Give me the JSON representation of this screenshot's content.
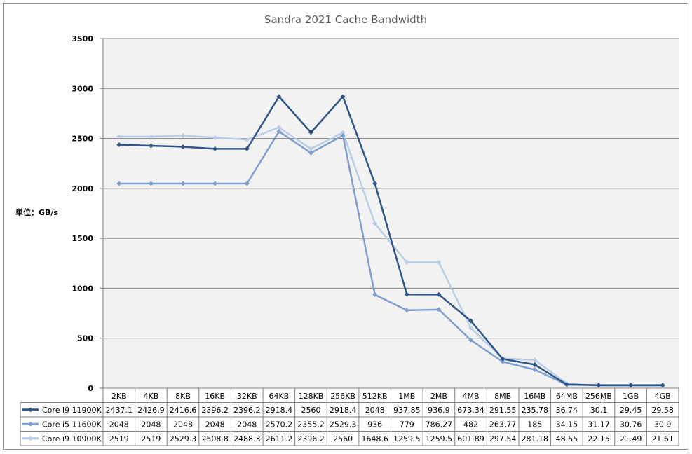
{
  "chart_data": {
    "type": "line",
    "title": "Sandra 2021 Cache Bandwidth",
    "ylabel": "単位：GB/s",
    "ylim": [
      0,
      3500
    ],
    "yticks": [
      0,
      500,
      1000,
      1500,
      2000,
      2500,
      3000,
      3500
    ],
    "grid": true,
    "legend": "data-table-left",
    "categories": [
      "2KB",
      "4KB",
      "8KB",
      "16KB",
      "32KB",
      "64KB",
      "128KB",
      "256KB",
      "512KB",
      "1MB",
      "2MB",
      "4MB",
      "8MB",
      "16MB",
      "64MB",
      "256MB",
      "1GB",
      "4GB"
    ],
    "series": [
      {
        "name": "Core i9 11900K",
        "color": "#2e5687",
        "values": [
          2437.1,
          2426.9,
          2416.6,
          2396.2,
          2396.2,
          2918.4,
          2560,
          2918.4,
          2048,
          937.85,
          936.9,
          673.34,
          291.55,
          235.78,
          36.74,
          30.1,
          29.45,
          29.58
        ]
      },
      {
        "name": "Core i5 11600K",
        "color": "#7f9fcf",
        "values": [
          2048,
          2048,
          2048,
          2048,
          2048,
          2570.2,
          2355.2,
          2529.3,
          936,
          779,
          786.27,
          482,
          263.77,
          185,
          34.15,
          31.17,
          30.76,
          30.9
        ]
      },
      {
        "name": "Core i9 10900K",
        "color": "#b9cde8",
        "values": [
          2519,
          2519,
          2529.3,
          2508.8,
          2488.3,
          2611.2,
          2396.2,
          2560,
          1648.6,
          1259.5,
          1259.5,
          601.89,
          297.54,
          281.18,
          48.55,
          22.15,
          21.49,
          21.61
        ]
      }
    ],
    "table_text": [
      [
        "2437.1",
        "2426.9",
        "2416.6",
        "2396.2",
        "2396.2",
        "2918.4",
        "2560",
        "2918.4",
        "2048",
        "937.85",
        "936.9",
        "673.34",
        "291.55",
        "235.78",
        "36.74",
        "30.1",
        "29.45",
        "29.58"
      ],
      [
        "2048",
        "2048",
        "2048",
        "2048",
        "2048",
        "2570.2",
        "2355.2",
        "2529.3",
        "936",
        "779",
        "786.27",
        "482",
        "263.77",
        "185",
        "34.15",
        "31.17",
        "30.76",
        "30.9"
      ],
      [
        "2519",
        "2519",
        "2529.3",
        "2508.8",
        "2488.3",
        "2611.2",
        "2396.2",
        "2560",
        "1648.6",
        "1259.5",
        "1259.5",
        "601.89",
        "297.54",
        "281.18",
        "48.55",
        "22.15",
        "21.49",
        "21.61"
      ]
    ],
    "plot_area_color": "#f2f2f2",
    "gridline_color": "#808080"
  }
}
